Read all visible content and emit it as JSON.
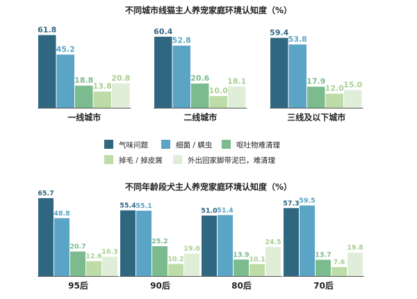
{
  "colors": {
    "series": [
      "#2f6780",
      "#5aa4c6",
      "#7bbb8d",
      "#bedca8",
      "#e0eed9"
    ],
    "label": [
      "#2f6780",
      "#5aa4c6",
      "#7bbb8d",
      "#a9cf92",
      "#a9cf92"
    ],
    "axis": "#555555",
    "text": "#222222"
  },
  "chart_data": [
    {
      "type": "bar",
      "title": "不同城市线猫主人养宠家庭环境认知度（%）",
      "categories": [
        "一线城市",
        "二线城市",
        "三线及以下城市"
      ],
      "series": [
        {
          "name": "气味问题",
          "values": [
            61.8,
            60.4,
            59.4
          ]
        },
        {
          "name": "细菌 / 螨虫",
          "values": [
            45.2,
            52.8,
            53.8
          ]
        },
        {
          "name": "呕吐物难清理",
          "values": [
            18.8,
            20.6,
            17.9
          ]
        },
        {
          "name": "掉毛 / 掉皮屑",
          "values": [
            13.8,
            10.0,
            12.0
          ]
        },
        {
          "name": "外出回家脚带泥巴，难清理",
          "values": [
            20.8,
            18.1,
            15.0
          ]
        }
      ],
      "ylim": [
        0,
        65
      ],
      "grid": false,
      "legend": "bottom"
    },
    {
      "type": "bar",
      "title": "不同年龄段犬主人养宠家庭环境认知度（%）",
      "categories": [
        "95后",
        "90后",
        "80后",
        "70后"
      ],
      "series": [
        {
          "name": "气味问题",
          "values": [
            65.7,
            55.4,
            51.0,
            57.3
          ]
        },
        {
          "name": "细菌 / 螨虫",
          "values": [
            48.8,
            55.1,
            51.4,
            59.5
          ]
        },
        {
          "name": "呕吐物难清理",
          "values": [
            20.7,
            25.2,
            13.9,
            13.7
          ]
        },
        {
          "name": "掉毛 / 掉皮屑",
          "values": [
            12.6,
            10.2,
            10.1,
            7.6
          ]
        },
        {
          "name": "外出回家脚带泥巴，难清理",
          "values": [
            16.3,
            19.0,
            24.5,
            19.8
          ]
        }
      ],
      "ylim": [
        0,
        68
      ],
      "grid": false,
      "legend": "none"
    }
  ]
}
